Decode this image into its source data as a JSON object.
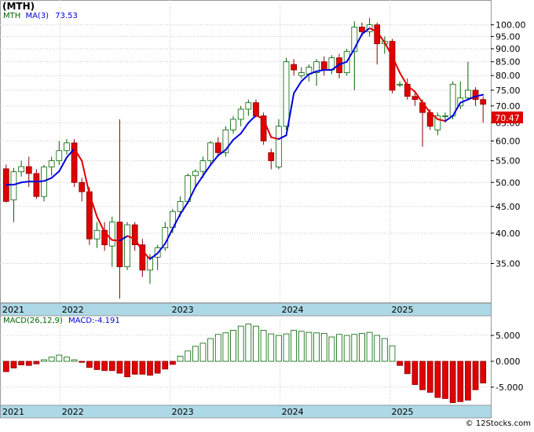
{
  "header": {
    "title": "(MTH)",
    "ma_ticker": "MTH",
    "ma_label": "MA(3)",
    "ma_value": "73.53",
    "macd_label": "MACD(26,12,9)",
    "macd_value_label": "MACD:-4.191",
    "credit": "© 12Stocks.com"
  },
  "colors": {
    "up_candle": "#ffffff",
    "down_candle": "#e00000",
    "candle_outline": "#006400",
    "ma_rising": "#0000dd",
    "ma_falling": "#e00000",
    "macd_bar_positive": "#ffffff",
    "macd_bar_negative": "#e00000",
    "axis_band": "#add8e6",
    "last_price_box": "#e00000"
  },
  "chart_data": [
    {
      "type": "candlestick",
      "title": "(MTH)",
      "scale": "log",
      "ylim": [
        29.5,
        110
      ],
      "y_ticks": [
        "100.00",
        "95.00",
        "90.00",
        "85.00",
        "80.00",
        "75.00",
        "70.00",
        "65.00",
        "60.00",
        "55.00",
        "50.00",
        "45.00",
        "40.00",
        "35.00"
      ],
      "x_ticks": [
        "2021",
        "2022",
        "2023",
        "2024",
        "2025"
      ],
      "last_price_label": "70.47",
      "candles": [
        [
          53.1,
          54.1,
          45.8,
          46.0
        ],
        [
          46.3,
          53.3,
          42.0,
          52.4
        ],
        [
          52.4,
          55.0,
          51.3,
          53.6
        ],
        [
          53.6,
          56.0,
          49.0,
          52.0
        ],
        [
          52.0,
          53.0,
          46.5,
          47.0
        ],
        [
          47.0,
          54.0,
          46.0,
          53.5
        ],
        [
          53.5,
          56.0,
          51.5,
          55.0
        ],
        [
          55.0,
          60.0,
          54.0,
          57.5
        ],
        [
          57.5,
          60.5,
          56.5,
          59.5
        ],
        [
          59.5,
          60.5,
          49.0,
          50.0
        ],
        [
          50.0,
          51.0,
          46.0,
          48.0
        ],
        [
          48.0,
          49.0,
          38.0,
          39.0
        ],
        [
          39.0,
          42.0,
          37.5,
          40.5
        ],
        [
          40.5,
          42.0,
          37.0,
          38.0
        ],
        [
          37.8,
          43.0,
          34.5,
          42.0
        ],
        [
          42.0,
          66.0,
          30.0,
          34.5
        ],
        [
          34.5,
          42.0,
          34.0,
          41.5
        ],
        [
          41.5,
          42.0,
          37.0,
          38.0
        ],
        [
          38.0,
          39.0,
          33.0,
          34.0
        ],
        [
          34.0,
          36.5,
          32.0,
          36.0
        ],
        [
          36.0,
          38.0,
          34.0,
          37.5
        ],
        [
          37.5,
          42.0,
          37.0,
          41.0
        ],
        [
          41.0,
          44.5,
          40.0,
          44.0
        ],
        [
          44.0,
          47.0,
          43.0,
          46.0
        ],
        [
          46.0,
          52.0,
          45.5,
          51.5
        ],
        [
          51.5,
          53.0,
          49.0,
          52.5
        ],
        [
          52.5,
          56.0,
          51.0,
          55.0
        ],
        [
          55.0,
          60.0,
          54.0,
          59.5
        ],
        [
          59.5,
          61.0,
          56.0,
          57.0
        ],
        [
          57.0,
          64.0,
          56.0,
          63.0
        ],
        [
          63.0,
          67.0,
          62.0,
          66.0
        ],
        [
          66.0,
          70.0,
          64.0,
          69.0
        ],
        [
          69.0,
          72.0,
          67.0,
          71.0
        ],
        [
          71.0,
          72.0,
          66.5,
          67.0
        ],
        [
          67.0,
          68.0,
          59.0,
          60.0
        ],
        [
          57.0,
          58.0,
          53.0,
          55.0
        ],
        [
          53.5,
          66.0,
          53.0,
          64.0
        ],
        [
          64.0,
          86.5,
          63.0,
          85.0
        ],
        [
          84.0,
          86.0,
          80.0,
          82.0
        ],
        [
          80.0,
          83.0,
          79.0,
          81.0
        ],
        [
          80.5,
          84.0,
          78.0,
          83.0
        ],
        [
          81.0,
          86.0,
          76.5,
          85.0
        ],
        [
          85.0,
          87.0,
          80.0,
          82.0
        ],
        [
          82.0,
          87.5,
          80.5,
          86.5
        ],
        [
          86.5,
          88.0,
          79.0,
          81.0
        ],
        [
          81.0,
          90.0,
          80.0,
          89.0
        ],
        [
          89.0,
          101.5,
          75.0,
          99.0
        ],
        [
          99.0,
          101.0,
          95.0,
          97.0
        ],
        [
          97.0,
          103.0,
          95.0,
          100.0
        ],
        [
          100.0,
          101.0,
          84.0,
          92.0
        ],
        [
          92.0,
          95.0,
          88.0,
          93.0
        ],
        [
          93.0,
          94.0,
          74.0,
          75.0
        ],
        [
          77.0,
          78.0,
          76.0,
          77.0
        ],
        [
          77.0,
          79.0,
          72.0,
          73.0
        ],
        [
          73.0,
          74.0,
          70.0,
          72.0
        ],
        [
          71.0,
          72.0,
          58.5,
          68.0
        ],
        [
          68.0,
          69.0,
          63.0,
          64.0
        ],
        [
          63.0,
          68.0,
          61.5,
          67.0
        ],
        [
          67.0,
          68.0,
          65.0,
          67.0
        ],
        [
          67.0,
          78.0,
          66.0,
          77.0
        ],
        [
          70.0,
          78.0,
          69.0,
          72.5
        ],
        [
          72.5,
          85.0,
          72.0,
          75.0
        ],
        [
          75.0,
          76.0,
          70.0,
          72.0
        ],
        [
          72.0,
          73.0,
          65.0,
          70.5
        ]
      ],
      "ma3": [
        49.5,
        49.5,
        50.0,
        50.2,
        50.2,
        50.3,
        51.0,
        52.5,
        55.8,
        58.0,
        55.0,
        47.5,
        43.0,
        40.2,
        38.8,
        38.7,
        39.5,
        39.0,
        37.0,
        35.7,
        36.6,
        38.2,
        40.8,
        43.5,
        45.8,
        49.0,
        51.5,
        54.0,
        56.3,
        57.7,
        60.3,
        62.0,
        65.0,
        67.2,
        66.0,
        61.0,
        60.5,
        61.5,
        74.0,
        78.0,
        80.5,
        81.5,
        82.0,
        82.0,
        84.0,
        85.0,
        90.0,
        96.0,
        98.5,
        97.0,
        92.5,
        87.0,
        81.0,
        76.5,
        74.5,
        71.0,
        68.0,
        66.0,
        65.5,
        67.0,
        71.0,
        72.0,
        73.0,
        73.53
      ],
      "macd": [
        -2.0,
        -1.3,
        -0.7,
        -0.8,
        -0.5,
        0.3,
        0.8,
        1.2,
        0.8,
        0.3,
        -0.2,
        -1.2,
        -1.6,
        -1.8,
        -1.8,
        -2.3,
        -3.0,
        -2.5,
        -2.5,
        -2.7,
        -2.3,
        -1.5,
        -0.6,
        1.0,
        2.0,
        2.9,
        3.5,
        4.4,
        5.2,
        5.5,
        6.0,
        6.8,
        7.2,
        6.8,
        6.0,
        5.3,
        5.0,
        5.3,
        6.0,
        5.8,
        5.6,
        5.5,
        5.4,
        4.7,
        5.2,
        5.0,
        5.2,
        5.4,
        5.6,
        5.0,
        4.4,
        3.0,
        -0.8,
        -2.4,
        -4.5,
        -5.5,
        -6.0,
        -7.0,
        -7.2,
        -8.0,
        -7.8,
        -7.5,
        -5.5,
        -4.2
      ],
      "macd_ylim": [
        -8.2,
        8.5
      ],
      "macd_ticks": [
        "5.000",
        "0.000",
        "-5.000"
      ]
    }
  ]
}
